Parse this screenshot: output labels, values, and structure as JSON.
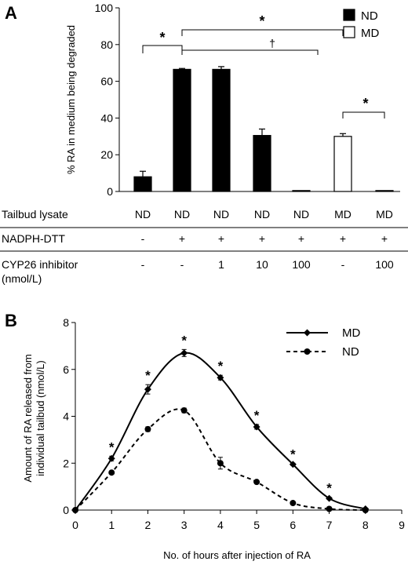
{
  "panelA": {
    "panel_label": "A",
    "table": {
      "rows": [
        {
          "label": "Tailbud lysate",
          "values": [
            "ND",
            "ND",
            "ND",
            "ND",
            "ND",
            "MD",
            "MD"
          ]
        },
        {
          "label": "NADPH-DTT",
          "values": [
            "-",
            "+",
            "+",
            "+",
            "+",
            "+",
            "+"
          ]
        },
        {
          "label": "CYP26 inhibitor",
          "label2": "(nmol/L)",
          "values": [
            "-",
            "-",
            "1",
            "10",
            "100",
            "-",
            "100"
          ]
        }
      ]
    },
    "significance": {
      "star": "*",
      "dagger": "†"
    }
  },
  "panelB": {
    "panel_label": "B",
    "star": "*"
  },
  "chart_data": [
    {
      "type": "bar",
      "ylabel": "% RA in medium being degraded",
      "ylim": [
        0,
        100
      ],
      "yticks": [
        "0",
        "20",
        "40",
        "60",
        "80",
        "100"
      ],
      "legend": {
        "placement": "top-right",
        "entries": [
          {
            "name": "ND",
            "fill": "#000000"
          },
          {
            "name": "MD",
            "fill": "#ffffff"
          }
        ]
      },
      "bars": [
        {
          "value": 8,
          "error": 3,
          "group": "ND"
        },
        {
          "value": 66.5,
          "error": 0.5,
          "group": "ND"
        },
        {
          "value": 66.5,
          "error": 1.5,
          "group": "ND"
        },
        {
          "value": 30.5,
          "error": 3.5,
          "group": "ND"
        },
        {
          "value": 0.5,
          "error": 0,
          "group": "ND"
        },
        {
          "value": 30,
          "error": 1.5,
          "group": "MD"
        },
        {
          "value": 0.5,
          "error": 0,
          "group": "MD"
        }
      ]
    },
    {
      "type": "line",
      "xlabel": "No. of hours after injection of RA",
      "ylabel": "Amount of RA released from",
      "ylabel2": "individual tailbud (nmol/L)",
      "xlim": [
        0,
        9
      ],
      "ylim": [
        0,
        8
      ],
      "xticks": [
        "0",
        "1",
        "2",
        "3",
        "4",
        "5",
        "6",
        "7",
        "8",
        "9"
      ],
      "yticks": [
        "0",
        "2",
        "4",
        "6",
        "8"
      ],
      "legend": {
        "placement": "top-right"
      },
      "x": [
        0,
        1,
        2,
        3,
        4,
        5,
        6,
        7,
        8
      ],
      "series": [
        {
          "name": "MD",
          "marker": "diamond",
          "line": "solid",
          "values": [
            0,
            2.2,
            5.15,
            6.7,
            5.65,
            3.55,
            1.95,
            0.5,
            0.05
          ],
          "errors": [
            0,
            0.1,
            0.2,
            0.15,
            0.1,
            0.1,
            0.05,
            0.05,
            0
          ]
        },
        {
          "name": "ND",
          "marker": "circle",
          "line": "dashed",
          "values": [
            0,
            1.6,
            3.45,
            4.25,
            2.0,
            1.2,
            0.3,
            0.05,
            0.0
          ],
          "errors": [
            0,
            0.05,
            0.1,
            0.1,
            0.25,
            0.05,
            0.05,
            0,
            0
          ]
        }
      ],
      "significant_x": [
        1,
        2,
        3,
        4,
        5,
        6,
        7
      ]
    }
  ]
}
